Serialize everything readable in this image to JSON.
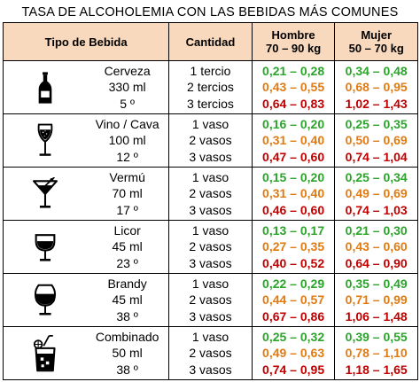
{
  "title": "TASA DE ALCOHOLEMIA  CON LAS BEBIDAS MÁS COMUNES",
  "headers": {
    "tipo": "Tipo de Bebida",
    "cantidad": "Cantidad",
    "hombre": "Hombre",
    "hombre_range": "70 – 90 kg",
    "mujer": "Mujer",
    "mujer_range": "50 – 70 kg"
  },
  "colors": {
    "header_bg": "#f8d9bd",
    "green": "#2aa52a",
    "orange": "#e07b14",
    "red": "#c00000"
  },
  "drinks": [
    {
      "icon": "beer-bottle-icon",
      "name": "Cerveza",
      "volume": "330 ml",
      "degree": "5 º",
      "qty": [
        "1 tercio",
        "2 tercios",
        "3 tercios"
      ],
      "hombre": [
        "0,21 – 0,28",
        "0,43 – 0,55",
        "0,64 – 0,83"
      ],
      "mujer": [
        "0,34 – 0,48",
        "0,68 – 0,95",
        "1,02 – 1,43"
      ]
    },
    {
      "icon": "wine-glass-icon",
      "name": "Vino / Cava",
      "volume": "100 ml",
      "degree": "12 º",
      "qty": [
        "1 vaso",
        "2 vasos",
        "3 vasos"
      ],
      "hombre": [
        "0,16 – 0,20",
        "0,31 – 0,40",
        "0,47 – 0,60"
      ],
      "mujer": [
        "0,25 – 0,35",
        "0,50 – 0,69",
        "0,74 – 1,04"
      ]
    },
    {
      "icon": "cocktail-glass-icon",
      "name": "Vermú",
      "volume": "70 ml",
      "degree": "17 º",
      "qty": [
        "1 vaso",
        "2 vasos",
        "3 vasos"
      ],
      "hombre": [
        "0,15 – 0,20",
        "0,31 – 0,40",
        "0,46 – 0,60"
      ],
      "mujer": [
        "0,25 – 0,34",
        "0,49 – 0,69",
        "0,74 – 1,03"
      ]
    },
    {
      "icon": "liqueur-glass-icon",
      "name": "Licor",
      "volume": "45 ml",
      "degree": "23 º",
      "qty": [
        "1 vaso",
        "2 vasos",
        "3 vasos"
      ],
      "hombre": [
        "0,13 – 0,17",
        "0,27 – 0,35",
        "0,40 – 0,52"
      ],
      "mujer": [
        "0,21 – 0,30",
        "0,43 – 0,60",
        "0,64 – 0,90"
      ]
    },
    {
      "icon": "brandy-glass-icon",
      "name": "Brandy",
      "volume": "45 ml",
      "degree": "38 º",
      "qty": [
        "1 vaso",
        "2 vasos",
        "3 vasos"
      ],
      "hombre": [
        "0,22 – 0,29",
        "0,44 – 0,57",
        "0,67 – 0,86"
      ],
      "mujer": [
        "0,35 – 0,49",
        "0,71 – 0,99",
        "1,06 – 1,48"
      ]
    },
    {
      "icon": "mixed-drink-icon",
      "name": "Combinado",
      "volume": "50 ml",
      "degree": "38 º",
      "qty": [
        "1 vaso",
        "2 vasos",
        "3 vasos"
      ],
      "hombre": [
        "0,25 – 0,32",
        "0,49 – 0,63",
        "0,74 – 0,95"
      ],
      "mujer": [
        "0,39 – 0,55",
        "0,78 – 1,10",
        "1,18 – 1,65"
      ]
    }
  ]
}
